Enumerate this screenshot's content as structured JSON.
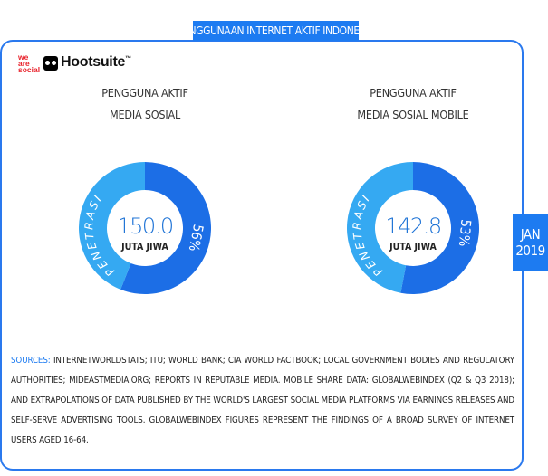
{
  "header": {
    "title": "PENGGUNAAN INTERNET AKTIF INDONESIA"
  },
  "branding": {
    "was_lines": [
      "we",
      "are",
      "social"
    ],
    "hootsuite": "Hootsuite",
    "hootsuite_tm": "™"
  },
  "colors": {
    "accent": "#1d7bf1",
    "light_ring": "#35a9f2",
    "dark_ring": "#1c6ee6",
    "logo_red": "#e8222b"
  },
  "icons": {
    "hootsuite": "owl-icon"
  },
  "chart_data": [
    {
      "type": "pie",
      "title_lines": [
        "PENGGUNA AKTIF",
        "MEDIA SOSIAL"
      ],
      "value": "150.0",
      "unit": "JUTA JIWA",
      "slices": [
        {
          "name": "PENETRASI",
          "value": 56,
          "label": "56%"
        },
        {
          "name": "",
          "value": 44
        }
      ]
    },
    {
      "type": "pie",
      "title_lines": [
        "PENGGUNA AKTIF",
        "MEDIA SOSIAL MOBILE"
      ],
      "value": "142.8",
      "unit": "JUTA JIWA",
      "slices": [
        {
          "name": "PENETRASI",
          "value": 53,
          "label": "53%"
        },
        {
          "name": "",
          "value": 47
        }
      ]
    }
  ],
  "date_tag": {
    "line1": "JAN",
    "line2": "2019"
  },
  "sources": {
    "label": "SOURCES:",
    "text": "INTERNETWORLDSTATS; ITU; WORLD BANK; CIA WORLD FACTBOOK; LOCAL GOVERNMENT BODIES AND REGULATORY AUTHORITIES; MIDEASTMEDIA.ORG; REPORTS IN REPUTABLE MEDIA. MOBILE SHARE DATA: GLOBALWEBINDEX (Q2 & Q3 2018); AND EXTRAPOLATIONS OF DATA PUBLISHED BY THE WORLD'S LARGEST SOCIAL MEDIA PLATFORMS VIA EARNINGS RELEASES AND SELF-SERVE ADVERTISING TOOLS. GLOBALWEBINDEX FIGURES REPRESENT THE FINDINGS OF A BROAD SURVEY OF INTERNET USERS AGED 16-64."
  }
}
